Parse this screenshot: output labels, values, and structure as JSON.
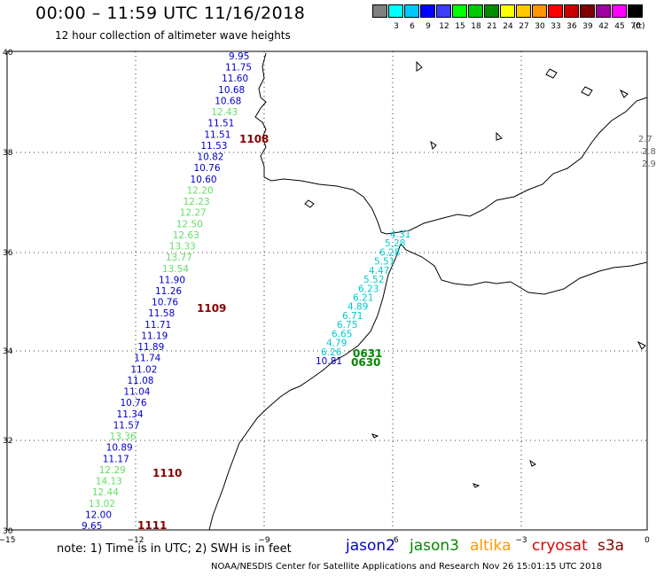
{
  "header": {
    "title": "00:00 – 11:59 UTC 11/16/2018",
    "subtitle": "12 hour collection of altimeter wave heights"
  },
  "color_scale": {
    "unit": "(ft)",
    "bins": [
      {
        "label": "",
        "color": "#808080"
      },
      {
        "label": "3",
        "color": "#00ffff"
      },
      {
        "label": "6",
        "color": "#00c8ff"
      },
      {
        "label": "9",
        "color": "#0000ff"
      },
      {
        "label": "12",
        "color": "#3c3cff"
      },
      {
        "label": "15",
        "color": "#00ff00"
      },
      {
        "label": "18",
        "color": "#00c800"
      },
      {
        "label": "21",
        "color": "#008c00"
      },
      {
        "label": "24",
        "color": "#ffff00"
      },
      {
        "label": "27",
        "color": "#ffc800"
      },
      {
        "label": "30",
        "color": "#ff9600"
      },
      {
        "label": "33",
        "color": "#ff0000"
      },
      {
        "label": "36",
        "color": "#c80000"
      },
      {
        "label": "39",
        "color": "#800000"
      },
      {
        "label": "42",
        "color": "#a000a0"
      },
      {
        "label": "45",
        "color": "#ff00ff"
      },
      {
        "label": "70",
        "color": "#000000"
      }
    ]
  },
  "axes": {
    "lat_labels": [
      "40",
      "38",
      "36",
      "34",
      "32",
      "30"
    ],
    "lon_labels": [
      "−15",
      "−12",
      "−9",
      "−6",
      "−3",
      "0"
    ]
  },
  "colors": {
    "jason2": "#0000cc",
    "jason3": "#008800",
    "altika": "#ff9900",
    "cryosat": "#dd0000",
    "s3a": "#880000",
    "light_green": "#66dd66",
    "cyan": "#00cccc"
  },
  "track_west": {
    "values": [
      {
        "v": "9.95",
        "c": "b"
      },
      {
        "v": "11.75",
        "c": "b"
      },
      {
        "v": "11.60",
        "c": "b"
      },
      {
        "v": "10.68",
        "c": "b"
      },
      {
        "v": "10.68",
        "c": "b"
      },
      {
        "v": "12.43",
        "c": "g"
      },
      {
        "v": "11.51",
        "c": "b"
      },
      {
        "v": "11.51",
        "c": "b"
      },
      {
        "v": "11.53",
        "c": "b"
      },
      {
        "v": "10.82",
        "c": "b"
      },
      {
        "v": "10.76",
        "c": "b"
      },
      {
        "v": "10.60",
        "c": "b"
      },
      {
        "v": "12.20",
        "c": "g"
      },
      {
        "v": "12.23",
        "c": "g"
      },
      {
        "v": "12.27",
        "c": "g"
      },
      {
        "v": "12.50",
        "c": "g"
      },
      {
        "v": "12.63",
        "c": "g"
      },
      {
        "v": "13.33",
        "c": "g"
      },
      {
        "v": "13.77",
        "c": "g"
      },
      {
        "v": "13.54",
        "c": "g"
      },
      {
        "v": "11.90",
        "c": "b"
      },
      {
        "v": "11.26",
        "c": "b"
      },
      {
        "v": "10.76",
        "c": "b"
      },
      {
        "v": "11.58",
        "c": "b"
      },
      {
        "v": "11.71",
        "c": "b"
      },
      {
        "v": "11.19",
        "c": "b"
      },
      {
        "v": "11.89",
        "c": "b"
      },
      {
        "v": "11.74",
        "c": "b"
      },
      {
        "v": "11.02",
        "c": "b"
      },
      {
        "v": "11.08",
        "c": "b"
      },
      {
        "v": "11.04",
        "c": "b"
      },
      {
        "v": "10.76",
        "c": "b"
      },
      {
        "v": "11.34",
        "c": "b"
      },
      {
        "v": "11.57",
        "c": "b"
      },
      {
        "v": "13.36",
        "c": "g"
      },
      {
        "v": "10.89",
        "c": "b"
      },
      {
        "v": "11.17",
        "c": "b"
      },
      {
        "v": "12.29",
        "c": "g"
      },
      {
        "v": "14.13",
        "c": "g"
      },
      {
        "v": "12.44",
        "c": "g"
      },
      {
        "v": "13.02",
        "c": "g"
      },
      {
        "v": "12.00",
        "c": "b"
      },
      {
        "v": "9.65",
        "c": "b"
      }
    ],
    "times": [
      "1108",
      "1109",
      "1110",
      "1111"
    ]
  },
  "track_east": {
    "values": [
      {
        "v": "4.31",
        "c": "c"
      },
      {
        "v": "5.28",
        "c": "c"
      },
      {
        "v": "6.28",
        "c": "c"
      },
      {
        "v": "5.51",
        "c": "c"
      },
      {
        "v": "4.47",
        "c": "c"
      },
      {
        "v": "5.52",
        "c": "c"
      },
      {
        "v": "6.23",
        "c": "c"
      },
      {
        "v": "6.21",
        "c": "c"
      },
      {
        "v": "4.89",
        "c": "c"
      },
      {
        "v": "6.71",
        "c": "c"
      },
      {
        "v": "6.75",
        "c": "c"
      },
      {
        "v": "6.65",
        "c": "c"
      },
      {
        "v": "4.79",
        "c": "c"
      },
      {
        "v": "6.26",
        "c": "c"
      },
      {
        "v": "10.81",
        "c": "b"
      }
    ],
    "times": [
      "0631",
      "0630"
    ]
  },
  "edge_values": [
    "2.7",
    "2.8",
    "2.9"
  ],
  "footer": {
    "note": "note: 1) Time is in UTC; 2) SWH is in feet",
    "satellites": [
      "jason2",
      "jason3",
      "altika",
      "cryosat",
      "s3a"
    ],
    "credit": "NOAA/NESDIS Center for Satellite Applications and Research    Nov 26 15:01:15 UTC 2018"
  }
}
